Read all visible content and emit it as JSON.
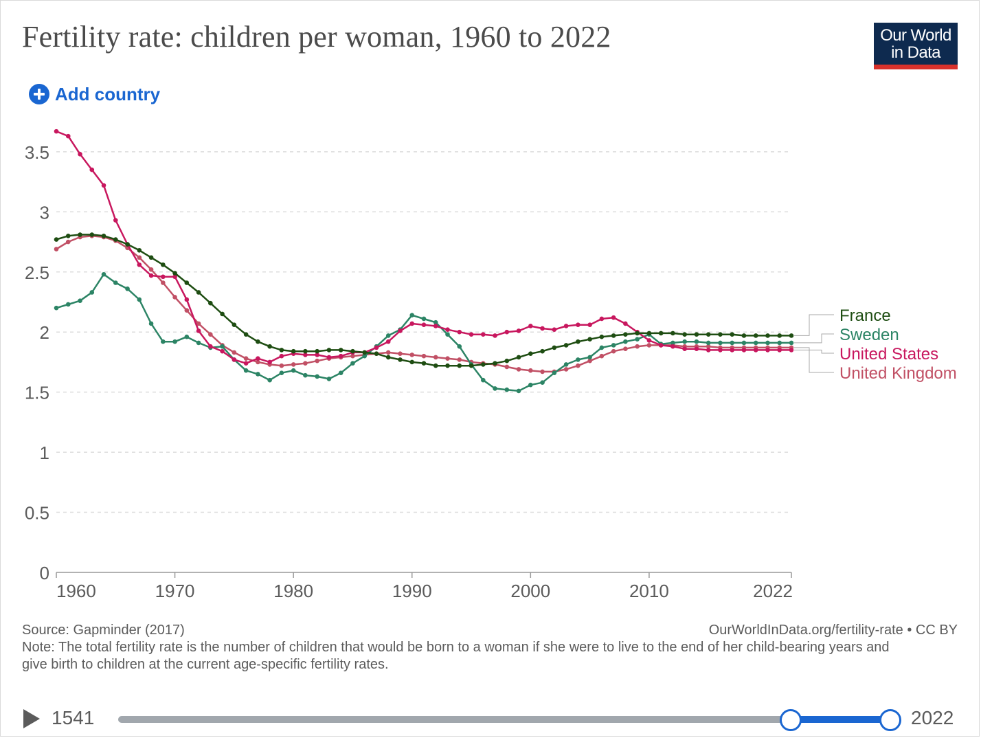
{
  "header": {
    "title": "Fertility rate: children per woman, 1960 to 2022",
    "logo_line1": "Our World",
    "logo_line2": "in Data",
    "add_country_label": "Add country"
  },
  "footer": {
    "source": "Source: Gapminder (2017)",
    "url_license": "OurWorldInData.org/fertility-rate • CC BY",
    "note": "Note: The total fertility rate is the number of children that would be born to a woman if she were to live to the end of her child-bearing years and give birth to children at the current age-specific fertility rates."
  },
  "timeline": {
    "start_label": "1541",
    "end_label": "2022",
    "selected_start": 1960,
    "selected_end": 2022,
    "range_min": 1541,
    "range_max": 2022
  },
  "chart_data": {
    "type": "line",
    "title": "Fertility rate: children per woman, 1960 to 2022",
    "xlabel": "",
    "ylabel": "",
    "xlim": [
      1960,
      2022
    ],
    "ylim": [
      0,
      3.5
    ],
    "x_ticks": [
      "1960",
      "1970",
      "1980",
      "1990",
      "2000",
      "2010",
      "2022"
    ],
    "y_ticks": [
      "0",
      "0.5",
      "1",
      "1.5",
      "2",
      "2.5",
      "3",
      "3.5"
    ],
    "grid": "horizontal dashed",
    "legend": "right (line-end labels)",
    "x": [
      1960,
      1961,
      1962,
      1963,
      1964,
      1965,
      1966,
      1967,
      1968,
      1969,
      1970,
      1971,
      1972,
      1973,
      1974,
      1975,
      1976,
      1977,
      1978,
      1979,
      1980,
      1981,
      1982,
      1983,
      1984,
      1985,
      1986,
      1987,
      1988,
      1989,
      1990,
      1991,
      1992,
      1993,
      1994,
      1995,
      1996,
      1997,
      1998,
      1999,
      2000,
      2001,
      2002,
      2003,
      2004,
      2005,
      2006,
      2007,
      2008,
      2009,
      2010,
      2011,
      2012,
      2013,
      2014,
      2015,
      2016,
      2017,
      2018,
      2019,
      2020,
      2021,
      2022
    ],
    "series": [
      {
        "name": "France",
        "color": "#1e4d12",
        "values": [
          2.77,
          2.8,
          2.81,
          2.81,
          2.8,
          2.77,
          2.73,
          2.68,
          2.62,
          2.56,
          2.49,
          2.41,
          2.33,
          2.24,
          2.15,
          2.06,
          1.98,
          1.92,
          1.88,
          1.85,
          1.84,
          1.84,
          1.84,
          1.85,
          1.85,
          1.84,
          1.83,
          1.82,
          1.79,
          1.77,
          1.75,
          1.74,
          1.72,
          1.72,
          1.72,
          1.72,
          1.73,
          1.74,
          1.76,
          1.79,
          1.82,
          1.84,
          1.87,
          1.89,
          1.92,
          1.94,
          1.96,
          1.97,
          1.98,
          1.99,
          1.99,
          1.99,
          1.99,
          1.98,
          1.98,
          1.98,
          1.98,
          1.98,
          1.97,
          1.97,
          1.97,
          1.97,
          1.97
        ]
      },
      {
        "name": "Sweden",
        "color": "#2c8465",
        "values": [
          2.2,
          2.23,
          2.26,
          2.33,
          2.48,
          2.41,
          2.36,
          2.27,
          2.07,
          1.92,
          1.92,
          1.96,
          1.91,
          1.87,
          1.88,
          1.77,
          1.68,
          1.65,
          1.6,
          1.66,
          1.68,
          1.64,
          1.63,
          1.61,
          1.66,
          1.74,
          1.8,
          1.88,
          1.97,
          2.02,
          2.14,
          2.11,
          2.08,
          1.98,
          1.88,
          1.73,
          1.6,
          1.53,
          1.52,
          1.51,
          1.56,
          1.58,
          1.66,
          1.73,
          1.77,
          1.79,
          1.87,
          1.89,
          1.92,
          1.94,
          1.98,
          1.9,
          1.91,
          1.92,
          1.92,
          1.91,
          1.91,
          1.91,
          1.91,
          1.91,
          1.91,
          1.91,
          1.91
        ]
      },
      {
        "name": "United States",
        "color": "#c8175e",
        "values": [
          3.67,
          3.63,
          3.48,
          3.35,
          3.22,
          2.93,
          2.73,
          2.56,
          2.47,
          2.46,
          2.46,
          2.27,
          2.01,
          1.88,
          1.84,
          1.77,
          1.74,
          1.78,
          1.75,
          1.8,
          1.82,
          1.81,
          1.81,
          1.79,
          1.8,
          1.83,
          1.83,
          1.87,
          1.92,
          2.01,
          2.07,
          2.06,
          2.05,
          2.02,
          2.0,
          1.98,
          1.98,
          1.97,
          2.0,
          2.01,
          2.05,
          2.03,
          2.02,
          2.05,
          2.06,
          2.06,
          2.11,
          2.12,
          2.07,
          2.0,
          1.93,
          1.89,
          1.88,
          1.86,
          1.86,
          1.85,
          1.85,
          1.85,
          1.85,
          1.85,
          1.85,
          1.85,
          1.85
        ]
      },
      {
        "name": "United Kingdom",
        "color": "#c15065",
        "values": [
          2.69,
          2.75,
          2.79,
          2.8,
          2.79,
          2.76,
          2.7,
          2.62,
          2.52,
          2.41,
          2.29,
          2.18,
          2.07,
          1.98,
          1.89,
          1.83,
          1.78,
          1.75,
          1.73,
          1.72,
          1.73,
          1.74,
          1.76,
          1.78,
          1.79,
          1.8,
          1.81,
          1.82,
          1.83,
          1.82,
          1.81,
          1.8,
          1.79,
          1.78,
          1.77,
          1.75,
          1.74,
          1.73,
          1.71,
          1.69,
          1.68,
          1.67,
          1.67,
          1.69,
          1.72,
          1.76,
          1.8,
          1.84,
          1.86,
          1.88,
          1.89,
          1.89,
          1.89,
          1.88,
          1.88,
          1.88,
          1.87,
          1.87,
          1.87,
          1.87,
          1.87,
          1.87,
          1.87
        ]
      }
    ]
  }
}
